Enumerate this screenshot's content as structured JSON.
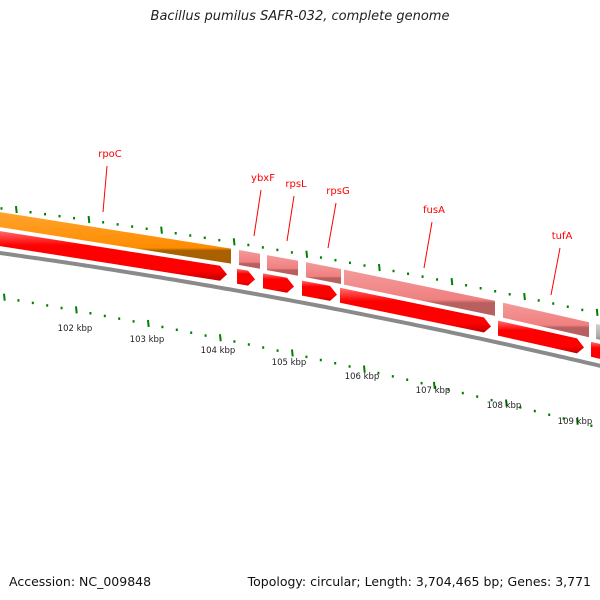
{
  "title": "Bacillus pumilus SAFR-032, complete genome",
  "footer": {
    "accession": "Accession: NC_009848",
    "topology": "Topology: circular; Length: 3,704,465 bp; Genes: 3,771"
  },
  "colors": {
    "gene_label": "#ff0000",
    "cds_arrow": "#ff0000",
    "gene_feature": "#f08080",
    "rrna_like": "#ff8c00",
    "backbone": "#888888",
    "ticks": "#008000"
  },
  "scale_labels": [
    "102 kbp",
    "103 kbp",
    "104 kbp",
    "105 kbp",
    "106 kbp",
    "107 kbp",
    "108 kbp",
    "109 kbp"
  ],
  "genes": [
    {
      "name": "rpoC",
      "feature_color": "#ff8c00"
    },
    {
      "name": "ybxF",
      "feature_color": "#f08080"
    },
    {
      "name": "rpsL",
      "feature_color": "#f08080"
    },
    {
      "name": "rpsG",
      "feature_color": "#f08080"
    },
    {
      "name": "fusA",
      "feature_color": "#f08080"
    },
    {
      "name": "tufA",
      "feature_color": "#f08080"
    }
  ]
}
